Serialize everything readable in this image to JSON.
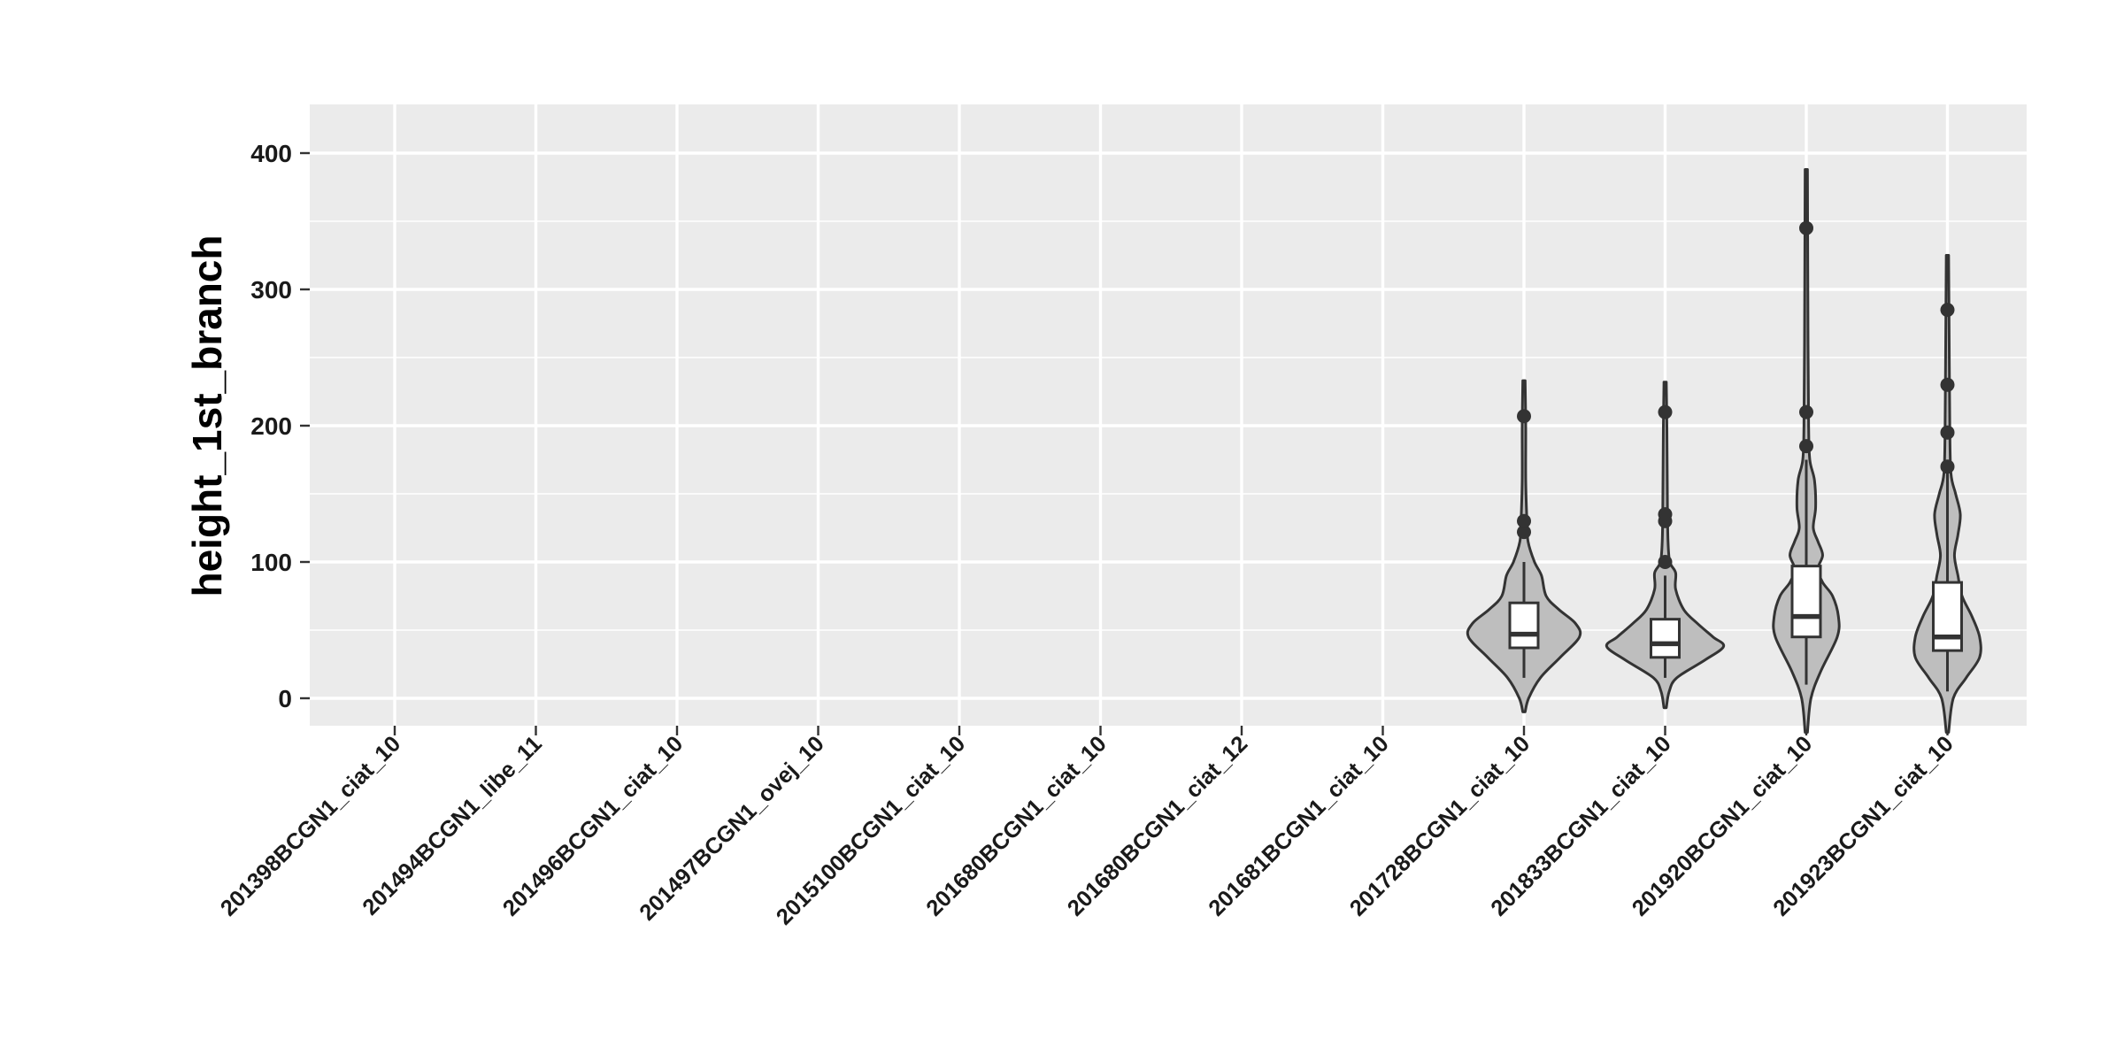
{
  "chart_data": {
    "type": "violin",
    "title": "",
    "xlabel": "",
    "ylabel": "height_1st_branch",
    "ylim": [
      -20,
      435
    ],
    "y_ticks": [
      0,
      100,
      200,
      300,
      400
    ],
    "y_minor_ticks": [
      50,
      150,
      250,
      350
    ],
    "grid": true,
    "categories": [
      "201398BCGN1_ciat_10",
      "201494BCGN1_libe_11",
      "201496BCGN1_ciat_10",
      "201497BCGN1_ovej_10",
      "2015100BCGN1_ciat_10",
      "201680BCGN1_ciat_10",
      "201680BCGN1_ciat_12",
      "201681BCGN1_ciat_10",
      "201728BCGN1_ciat_10",
      "201833BCGN1_ciat_10",
      "201920BCGN1_ciat_10",
      "201923BCGN1_ciat_10"
    ],
    "groups": [
      {
        "category": "201728BCGN1_ciat_10",
        "violin_min": -10,
        "violin_max": 233,
        "density": [
          [
            -10,
            0.02
          ],
          [
            0,
            0.08
          ],
          [
            15,
            0.28
          ],
          [
            30,
            0.62
          ],
          [
            45,
            0.95
          ],
          [
            55,
            0.88
          ],
          [
            65,
            0.6
          ],
          [
            75,
            0.38
          ],
          [
            90,
            0.3
          ],
          [
            100,
            0.18
          ],
          [
            115,
            0.07
          ],
          [
            130,
            0.05
          ],
          [
            160,
            0.03
          ],
          [
            200,
            0.03
          ],
          [
            233,
            0.02
          ]
        ],
        "whisker_low": 15,
        "q1": 37,
        "median": 47,
        "q3": 70,
        "whisker_high": 100,
        "outliers": [
          122,
          130,
          207
        ]
      },
      {
        "category": "201833BCGN1_ciat_10",
        "violin_min": -7,
        "violin_max": 232,
        "density": [
          [
            -7,
            0.02
          ],
          [
            5,
            0.07
          ],
          [
            15,
            0.2
          ],
          [
            28,
            0.68
          ],
          [
            38,
            1.0
          ],
          [
            45,
            0.82
          ],
          [
            55,
            0.55
          ],
          [
            65,
            0.32
          ],
          [
            80,
            0.18
          ],
          [
            92,
            0.18
          ],
          [
            100,
            0.08
          ],
          [
            115,
            0.05
          ],
          [
            140,
            0.04
          ],
          [
            200,
            0.03
          ],
          [
            232,
            0.02
          ]
        ],
        "whisker_low": 15,
        "q1": 30,
        "median": 40,
        "q3": 58,
        "whisker_high": 90,
        "outliers": [
          100,
          130,
          135,
          210
        ]
      },
      {
        "category": "201920BCGN1_ciat_10",
        "violin_min": -25,
        "violin_max": 388,
        "density": [
          [
            -25,
            0.02
          ],
          [
            0,
            0.08
          ],
          [
            20,
            0.25
          ],
          [
            45,
            0.53
          ],
          [
            60,
            0.55
          ],
          [
            75,
            0.45
          ],
          [
            85,
            0.28
          ],
          [
            95,
            0.2
          ],
          [
            105,
            0.28
          ],
          [
            115,
            0.2
          ],
          [
            125,
            0.12
          ],
          [
            140,
            0.16
          ],
          [
            160,
            0.14
          ],
          [
            175,
            0.06
          ],
          [
            200,
            0.04
          ],
          [
            260,
            0.03
          ],
          [
            388,
            0.02
          ]
        ],
        "whisker_low": 10,
        "q1": 45,
        "median": 60,
        "q3": 97,
        "whisker_high": 175,
        "outliers": [
          185,
          210,
          345
        ]
      },
      {
        "category": "201923BCGN1_ciat_10",
        "violin_min": -25,
        "violin_max": 325,
        "density": [
          [
            -25,
            0.02
          ],
          [
            0,
            0.1
          ],
          [
            15,
            0.32
          ],
          [
            30,
            0.55
          ],
          [
            45,
            0.55
          ],
          [
            60,
            0.42
          ],
          [
            75,
            0.25
          ],
          [
            90,
            0.18
          ],
          [
            105,
            0.12
          ],
          [
            120,
            0.18
          ],
          [
            135,
            0.22
          ],
          [
            150,
            0.14
          ],
          [
            165,
            0.06
          ],
          [
            200,
            0.04
          ],
          [
            260,
            0.03
          ],
          [
            325,
            0.02
          ]
        ],
        "whisker_low": 5,
        "q1": 35,
        "median": 45,
        "q3": 85,
        "whisker_high": 165,
        "outliers": [
          170,
          195,
          230,
          285
        ]
      }
    ]
  }
}
